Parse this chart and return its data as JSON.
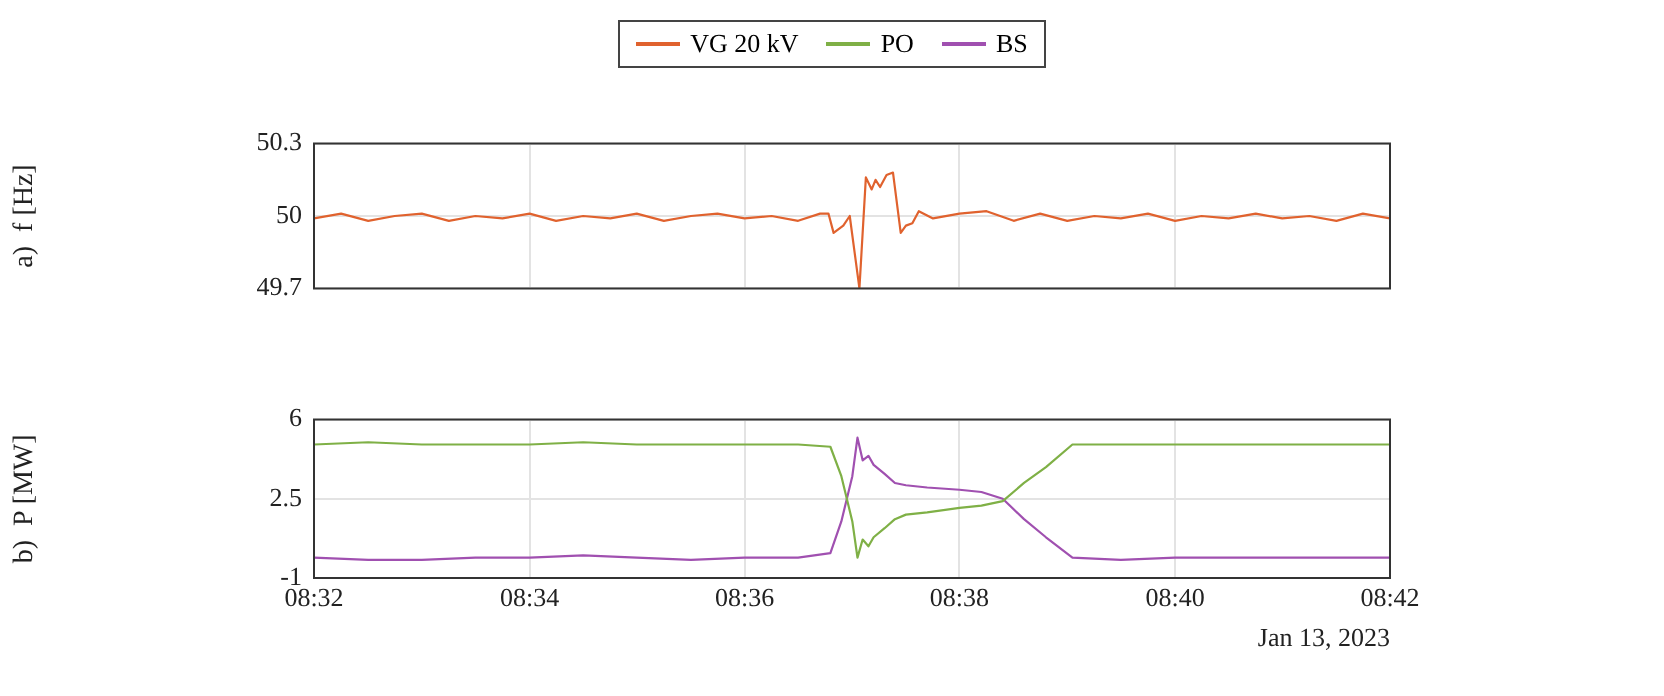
{
  "chart_data": [
    {
      "type": "line",
      "ylabel": "a)  f [Hz]",
      "legend": "top",
      "grid": true,
      "tick_labels": "y",
      "xlim": [
        8.5333,
        8.7
      ],
      "xticks": [
        {
          "value": 8.5333,
          "label": null
        },
        {
          "value": 8.5667,
          "label": null
        },
        {
          "value": 8.6,
          "label": null
        },
        {
          "value": 8.6333,
          "label": null
        },
        {
          "value": 8.6667,
          "label": null
        },
        {
          "value": 8.7,
          "label": null
        }
      ],
      "ylim": [
        49.7,
        50.3
      ],
      "yticks": [
        49.7,
        50,
        50.3
      ],
      "x": [
        8.5333,
        8.5375,
        8.5417,
        8.5458,
        8.55,
        8.5542,
        8.5583,
        8.5625,
        8.5667,
        8.5708,
        8.575,
        8.5792,
        8.5833,
        8.5875,
        8.5917,
        8.5958,
        8.6,
        8.6042,
        8.6083,
        8.6117,
        8.613,
        8.6138,
        8.6153,
        8.6163,
        8.6178,
        8.6188,
        8.6197,
        8.6203,
        8.621,
        8.622,
        8.623,
        8.6242,
        8.625,
        8.626,
        8.627,
        8.6292,
        8.6333,
        8.6375,
        8.6417,
        8.6458,
        8.65,
        8.6542,
        8.6583,
        8.6625,
        8.6667,
        8.6708,
        8.675,
        8.6792,
        8.6833,
        8.6875,
        8.6917,
        8.6958,
        8.7
      ],
      "series": [
        {
          "name": "VG 20 kV",
          "color": "#e0622e",
          "values": [
            49.99,
            50.01,
            49.98,
            50.0,
            50.01,
            49.98,
            50.0,
            49.99,
            50.01,
            49.98,
            50.0,
            49.99,
            50.01,
            49.98,
            50.0,
            50.01,
            49.99,
            50.0,
            49.98,
            50.01,
            50.01,
            49.93,
            49.96,
            50.0,
            49.7,
            50.16,
            50.11,
            50.15,
            50.12,
            50.17,
            50.18,
            49.93,
            49.96,
            49.97,
            50.02,
            49.99,
            50.01,
            50.02,
            49.98,
            50.01,
            49.98,
            50.0,
            49.99,
            50.01,
            49.98,
            50.0,
            49.99,
            50.01,
            49.99,
            50.0,
            49.98,
            50.01,
            49.99
          ]
        }
      ]
    },
    {
      "type": "line",
      "ylabel": "b)  P [MW]",
      "legend": "top",
      "grid": true,
      "xlim": [
        8.5333,
        8.7
      ],
      "xticks": [
        {
          "value": 8.5333,
          "label": "08:32"
        },
        {
          "value": 8.5667,
          "label": "08:34"
        },
        {
          "value": 8.6,
          "label": "08:36"
        },
        {
          "value": 8.6333,
          "label": "08:38"
        },
        {
          "value": 8.6667,
          "label": "08:40"
        },
        {
          "value": 8.7,
          "label": "08:42"
        }
      ],
      "ylim": [
        -1,
        6
      ],
      "yticks": [
        -1,
        2.5,
        6
      ],
      "annotations": [
        "Jan 13, 2023"
      ],
      "x": [
        8.5333,
        8.5417,
        8.55,
        8.5583,
        8.5667,
        8.575,
        8.5833,
        8.5917,
        8.6,
        8.6083,
        8.6133,
        8.615,
        8.6167,
        8.6175,
        8.6183,
        8.6192,
        8.62,
        8.6217,
        8.6233,
        8.625,
        8.6283,
        8.6333,
        8.6367,
        8.64,
        8.6433,
        8.6467,
        8.6508,
        8.6583,
        8.6667,
        8.675,
        8.6833,
        8.6917,
        8.7
      ],
      "series": [
        {
          "name": "PO",
          "color": "#7fb046",
          "values": [
            4.9,
            5.0,
            4.9,
            4.9,
            4.9,
            5.0,
            4.9,
            4.9,
            4.9,
            4.9,
            4.8,
            3.5,
            1.5,
            -0.1,
            0.7,
            0.4,
            0.8,
            1.2,
            1.6,
            1.8,
            1.9,
            2.1,
            2.2,
            2.4,
            3.2,
            3.9,
            4.9,
            4.9,
            4.9,
            4.9,
            4.9,
            4.9,
            4.9
          ]
        },
        {
          "name": "BS",
          "color": "#a050b0",
          "values": [
            -0.1,
            -0.2,
            -0.2,
            -0.1,
            -0.1,
            0.0,
            -0.1,
            -0.2,
            -0.1,
            -0.1,
            0.1,
            1.5,
            3.5,
            5.2,
            4.2,
            4.4,
            4.0,
            3.6,
            3.2,
            3.1,
            3.0,
            2.9,
            2.8,
            2.5,
            1.6,
            0.8,
            -0.1,
            -0.2,
            -0.1,
            -0.1,
            -0.1,
            -0.1,
            -0.1
          ]
        }
      ]
    }
  ]
}
